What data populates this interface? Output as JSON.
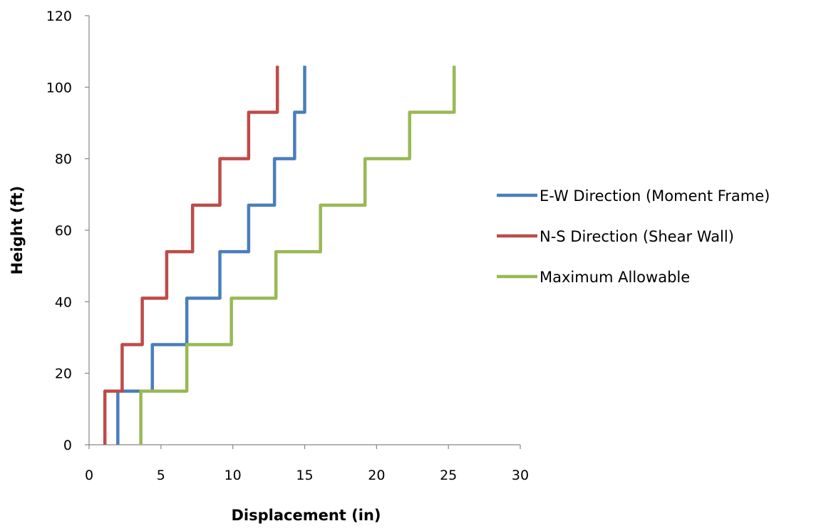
{
  "chart_data": {
    "type": "line",
    "title": "",
    "xlabel": "Displacement (in)",
    "ylabel": "Height (ft)",
    "xlim": [
      0,
      30
    ],
    "ylim": [
      0,
      120
    ],
    "xticks": [
      0,
      5,
      10,
      15,
      20,
      25,
      30
    ],
    "yticks": [
      0,
      20,
      40,
      60,
      80,
      100,
      120
    ],
    "grid": false,
    "legend_position": "right",
    "series": [
      {
        "name": "E-W Direction (Moment Frame)",
        "color": "#4a7ebb",
        "points": [
          [
            2.0,
            0
          ],
          [
            2.0,
            15
          ],
          [
            4.4,
            15
          ],
          [
            4.4,
            28
          ],
          [
            6.8,
            28
          ],
          [
            6.8,
            41
          ],
          [
            9.1,
            41
          ],
          [
            9.1,
            54
          ],
          [
            11.1,
            54
          ],
          [
            11.1,
            67
          ],
          [
            12.9,
            67
          ],
          [
            12.9,
            80
          ],
          [
            14.3,
            80
          ],
          [
            14.3,
            93
          ],
          [
            15.0,
            93
          ],
          [
            15.0,
            106
          ]
        ]
      },
      {
        "name": "N-S Direction (Shear Wall)",
        "color": "#be4b48",
        "points": [
          [
            1.1,
            0
          ],
          [
            1.1,
            15
          ],
          [
            2.3,
            15
          ],
          [
            2.3,
            28
          ],
          [
            3.7,
            28
          ],
          [
            3.7,
            41
          ],
          [
            5.4,
            41
          ],
          [
            5.4,
            54
          ],
          [
            7.2,
            54
          ],
          [
            7.2,
            67
          ],
          [
            9.1,
            67
          ],
          [
            9.1,
            80
          ],
          [
            11.1,
            80
          ],
          [
            11.1,
            93
          ],
          [
            13.1,
            93
          ],
          [
            13.1,
            106
          ]
        ]
      },
      {
        "name": "Maximum Allowable",
        "color": "#98b954",
        "points": [
          [
            3.6,
            0
          ],
          [
            3.6,
            15
          ],
          [
            6.8,
            15
          ],
          [
            6.8,
            28
          ],
          [
            9.9,
            28
          ],
          [
            9.9,
            41
          ],
          [
            13.0,
            41
          ],
          [
            13.0,
            54
          ],
          [
            16.1,
            54
          ],
          [
            16.1,
            67
          ],
          [
            19.2,
            67
          ],
          [
            19.2,
            80
          ],
          [
            22.3,
            80
          ],
          [
            22.3,
            93
          ],
          [
            25.4,
            93
          ],
          [
            25.4,
            106
          ]
        ]
      }
    ]
  }
}
